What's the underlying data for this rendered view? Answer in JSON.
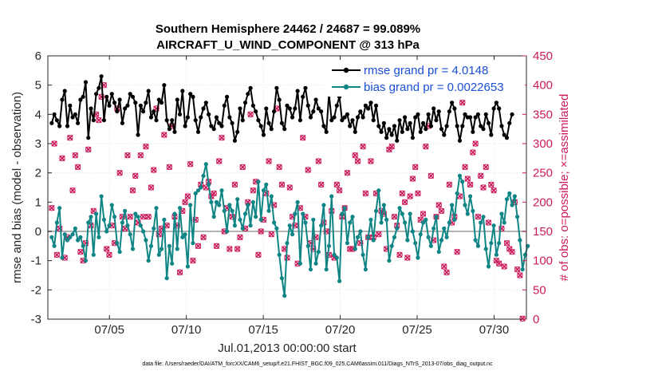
{
  "chart_data": {
    "type": "line",
    "title": "Southern Hemisphere 24462 / 24687 = 99.089%",
    "subtitle": "AIRCRAFT_U_WIND_COMPONENT @ 313 hPa",
    "xlabel": "Jul.01,2013 00:00:00 start",
    "ylabel": "rmse and bias (model - observation)",
    "ylabel_right": "# of obs: o=possible; ×=assimilated",
    "footer": "data file: /Users/raeder/DAI/ATM_forcXX/CAM6_setup/f.e21.FHIST_BGC.f09_025.CAM6assim.011/Diags_NTrS_2013-07/obs_diag_output.nc",
    "xlim": [
      1,
      32.1
    ],
    "ylim": [
      -3,
      6
    ],
    "ylim_right": [
      0,
      450
    ],
    "xticks": [
      5,
      10,
      15,
      20,
      25,
      30
    ],
    "xtick_labels": [
      "07/05",
      "07/10",
      "07/15",
      "07/20",
      "07/25",
      "07/30"
    ],
    "yticks": [
      "-3",
      "-2",
      "-1",
      "0",
      "1",
      "2",
      "3",
      "4",
      "5",
      "6"
    ],
    "yticks_right": [
      "0",
      "50",
      "100",
      "150",
      "200",
      "250",
      "300",
      "350",
      "400",
      "450"
    ],
    "colors": {
      "rmse": "#000000",
      "bias": "#0f8585",
      "obs": "#cc1a5c",
      "legend_text": "#1a4fd6",
      "zero_line": "#b3b3b3"
    },
    "series": [
      {
        "name": "rmse",
        "legend": "rmse grand pr = 4.0148",
        "values": [
          3.7,
          4.0,
          3.8,
          3.6,
          4.5,
          4.8,
          3.6,
          4.3,
          3.9,
          4.0,
          3.7,
          4.5,
          4.6,
          5.1,
          3.2,
          4.2,
          3.8,
          4.7,
          4.9,
          5.3,
          3.8,
          4.6,
          4.3,
          4.7,
          4.4,
          4.1,
          4.5,
          3.7,
          4.2,
          4.3,
          4.7,
          4.6,
          4.4,
          3.3,
          4.3,
          4.1,
          4.4,
          4.8,
          3.9,
          4.1,
          3.8,
          4.5,
          4.4,
          5.0,
          3.8,
          3.5,
          3.8,
          3.4,
          4.5,
          4.0,
          4.8,
          3.6,
          3.9,
          4.7,
          4.6,
          3.8,
          3.4,
          3.9,
          4.2,
          4.4,
          4.0,
          3.6,
          3.5,
          3.9,
          3.7,
          3.6,
          4.3,
          4.6,
          3.9,
          3.7,
          3.1,
          3.4,
          4.2,
          3.8,
          4.4,
          4.7,
          4.9,
          4.3,
          4.1,
          3.8,
          3.6,
          3.3,
          4.2,
          3.7,
          3.5,
          4.1,
          4.9,
          4.5,
          3.7,
          3.5,
          4.3,
          4.2,
          3.9,
          4.2,
          4.8,
          3.8,
          4.6,
          4.9,
          4.3,
          3.9,
          4.1,
          4.5,
          4.2,
          4.1,
          3.6,
          3.4,
          4.7,
          3.8,
          3.9,
          4.3,
          4.6,
          3.8,
          3.9,
          4.0,
          3.6,
          3.8,
          3.4,
          3.9,
          4.1,
          3.9,
          4.3,
          4.2,
          4.4,
          3.8,
          4.3,
          3.6,
          3.4,
          3.7,
          3.2,
          3.5,
          3.3,
          3.6,
          3.1,
          3.8,
          3.4,
          3.9,
          3.5,
          3.7,
          3.2,
          3.9,
          4.0,
          3.4,
          3.7,
          3.5,
          4.0,
          3.6,
          4.2,
          3.8,
          4.1,
          3.5,
          3.3,
          3.6,
          4.1,
          4.4,
          4.2,
          3.6,
          3.1,
          3.6,
          4.0,
          3.9,
          3.9,
          3.4,
          3.9,
          4.0,
          3.6,
          3.5,
          4.0,
          3.7,
          3.3,
          4.2,
          4.4,
          4.2,
          3.6,
          3.3,
          3.2,
          3.7,
          4.0
        ]
      },
      {
        "name": "bias",
        "legend": "bias grand pr = 0.0022653",
        "values": [
          -0.2,
          -0.5,
          0.3,
          0.8,
          -0.9,
          -0.1,
          -0.3,
          -0.2,
          -0.1,
          0.1,
          -0.3,
          -0.2,
          -0.5,
          -1.0,
          0.3,
          0.5,
          -0.8,
          0.6,
          -0.2,
          1.2,
          0.4,
          0.0,
          0.2,
          0.9,
          0.5,
          -0.4,
          -0.7,
          0.3,
          0.7,
          0.2,
          -0.1,
          -0.6,
          0.6,
          0.5,
          0.2,
          0.0,
          -0.3,
          -1.0,
          -0.5,
          0.1,
          0.8,
          -0.8,
          -0.6,
          0.4,
          -1.6,
          -0.5,
          -1.1,
          0.6,
          -0.6,
          0.8,
          -0.2,
          -0.1,
          -1.2,
          0.9,
          -0.4,
          1.3,
          1.4,
          1.5,
          1.9,
          2.3,
          1.6,
          1.0,
          0.5,
          1.0,
          0.9,
          1.4,
          0.7,
          0.0,
          0.9,
          0.7,
          0.2,
          1.1,
          0.4,
          0.1,
          0.6,
          0.9,
          0.2,
          1.0,
          0.5,
          1.7,
          0.4,
          1.4,
          1.6,
          0.7,
          1.2,
          0.3,
          0.1,
          -0.8,
          -1.6,
          -2.2,
          -0.4,
          0.2,
          -0.1,
          0.6,
          1.0,
          -1.1,
          0.6,
          0.3,
          -0.5,
          -1.3,
          0.4,
          -1.1,
          -0.7,
          0.2,
          0.9,
          -1.3,
          -0.5,
          1.2,
          -0.8,
          -0.9,
          -1.7,
          0.6,
          0.8,
          -0.4,
          0.3,
          0.5,
          -0.6,
          -0.2,
          0.0,
          -0.8,
          -1.3,
          -0.2,
          0.4,
          -0.3,
          0.7,
          1.4,
          0.3,
          0.9,
          0.4,
          -1.0,
          -0.5,
          -0.2,
          0.1,
          0.8,
          0.6,
          0.3,
          -0.3,
          0.6,
          0.0,
          -0.4,
          -0.9,
          -0.1,
          0.3,
          0.4,
          -0.2,
          -0.5,
          0.1,
          0.5,
          -0.7,
          -0.3,
          0.1,
          -0.2,
          0.3,
          0.9,
          0.4,
          1.3,
          1.9,
          1.7,
          0.9,
          0.6,
          1.2,
          0.7,
          -0.3,
          -0.5,
          0.3,
          0.5,
          -0.6,
          -1.2,
          -0.4,
          0.2,
          -0.8,
          -0.4,
          0.6,
          0.3,
          1.1,
          1.3,
          0.9,
          1.2,
          0.5,
          -0.3,
          -1.3,
          -0.8,
          -0.5
        ]
      },
      {
        "name": "obs",
        "axis": "right",
        "marker_possible": "o",
        "marker_assimilated": "x",
        "values": [
          190,
          300,
          110,
          155,
          275,
          105,
          140,
          310,
          220,
          280,
          260,
          115,
          100,
          130,
          290,
          160,
          185,
          350,
          340,
          380,
          400,
          120,
          110,
          160,
          130,
          360,
          250,
          175,
          155,
          280,
          175,
          220,
          245,
          165,
          280,
          175,
          295,
          175,
          225,
          255,
          360,
          145,
          155,
          315,
          160,
          260,
          330,
          175,
          160,
          80,
          185,
          200,
          210,
          265,
          100,
          170,
          125,
          230,
          140,
          225,
          235,
          210,
          215,
          125,
          270,
          310,
          150,
          190,
          120,
          175,
          230,
          120,
          140,
          260,
          155,
          200,
          350,
          220,
          235,
          110,
          150,
          170,
          215,
          270,
          145,
          195,
          360,
          260,
          230,
          120,
          105,
          225,
          175,
          160,
          95,
          190,
          310,
          175,
          255,
          130,
          120,
          140,
          270,
          230,
          165,
          150,
          110,
          185,
          105,
          230,
          220,
          175,
          190,
          250,
          120,
          120,
          280,
          270,
          130,
          295,
          215,
          140,
          270,
          140,
          215,
          145,
          185,
          180,
          120,
          290,
          295,
          175,
          160,
          110,
          215,
          200,
          105,
          210,
          240,
          260,
          215,
          170,
          180,
          295,
          330,
          245,
          135,
          175,
          195,
          185,
          90,
          80,
          230,
          165,
          175,
          115,
          210,
          370,
          260,
          240,
          230,
          285,
          300,
          175,
          245,
          225,
          260,
          165,
          230,
          220,
          100,
          95,
          155,
          90,
          130,
          120,
          115,
          200,
          85,
          75,
          1
        ]
      }
    ]
  }
}
